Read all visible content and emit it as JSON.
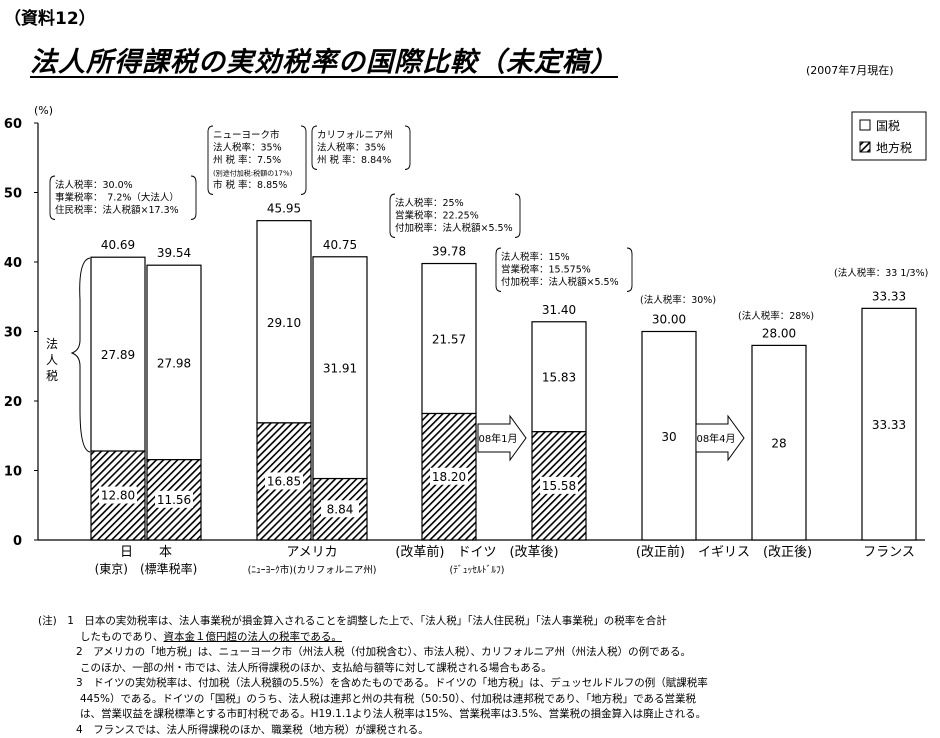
{
  "doc_label": "（資料12）",
  "title": "法人所得課税の実効税率の国際比較（未定稿）",
  "date_label": "(2007年7月現在)",
  "chart_data": {
    "type": "bar",
    "stacked": true,
    "ylabel": "(%)",
    "ylim": [
      0,
      60
    ],
    "yticks": [
      "0",
      "10",
      "20",
      "30",
      "40",
      "50",
      "60"
    ],
    "grid": false,
    "legend_position": "top-right",
    "series": [
      {
        "name": "国税",
        "color": "#ffffff"
      },
      {
        "name": "地方税",
        "color": "#505050"
      }
    ],
    "bars": [
      {
        "total": 40.69,
        "national": 27.89,
        "local": 12.8,
        "total_label": "40.69",
        "national_label": "27.89",
        "local_label": "12.80"
      },
      {
        "total": 39.54,
        "national": 27.98,
        "local": 11.56,
        "total_label": "39.54",
        "national_label": "27.98",
        "local_label": "11.56"
      },
      {
        "total": 45.95,
        "national": 29.1,
        "local": 16.85,
        "total_label": "45.95",
        "national_label": "29.10",
        "local_label": "16.85"
      },
      {
        "total": 40.75,
        "national": 31.91,
        "local": 8.84,
        "total_label": "40.75",
        "national_label": "31.91",
        "local_label": "8.84"
      },
      {
        "total": 39.78,
        "national": 21.57,
        "local": 18.2,
        "total_label": "39.78",
        "national_label": "21.57",
        "local_label": "18.20"
      },
      {
        "total": 31.4,
        "national": 15.83,
        "local": 15.58,
        "total_label": "31.40",
        "national_label": "15.83",
        "local_label": "15.58"
      },
      {
        "total": 30.0,
        "national": 30,
        "local": 0,
        "total_label": "30.00",
        "national_label": "30",
        "local_label": ""
      },
      {
        "total": 28.0,
        "national": 28,
        "local": 0,
        "total_label": "28.00",
        "national_label": "28",
        "local_label": ""
      },
      {
        "total": 33.33,
        "national": 33.33,
        "local": 0,
        "total_label": "33.33",
        "national_label": "33.33",
        "local_label": ""
      }
    ],
    "group_labels": [
      {
        "main": "日　　本",
        "sub": "(東京)　(標準税率)"
      },
      {
        "main": "アメリカ",
        "sub": "(ﾆｭｰﾖｰｸ市)(カリフォルニア州)"
      },
      {
        "main": "(改革前)　ドイツ　(改革後)",
        "sub": "(ﾃﾞｭｯｾﾙﾄﾞﾙﾌ)"
      },
      {
        "main": "(改正前)　イギリス　(改正後)",
        "sub": ""
      },
      {
        "main": "フランス",
        "sub": ""
      }
    ],
    "brace_label": "法人税",
    "arrows": [
      "08年1月",
      "08年4月"
    ],
    "annotations": [
      {
        "lines": [
          "法人税率：30.0%",
          "事業税率：　7.2%（大法人）",
          "住民税率：法人税額×17.3%"
        ]
      },
      {
        "lines": [
          "ニューヨーク市",
          "法人税率：35%",
          "州 税 率：7.5%",
          "(別途付加税:税額の17%)",
          "市 税 率：8.85%"
        ]
      },
      {
        "lines": [
          "カリフォルニア州",
          "法人税率：35%",
          "州 税 率：8.84%"
        ]
      },
      {
        "lines": [
          "法人税率：25%",
          "営業税率：22.25%",
          "付加税率：法人税額×5.5%"
        ]
      },
      {
        "lines": [
          "法人税率：15%",
          "営業税率：15.575%",
          "付加税率：法人税額×5.5%"
        ]
      },
      {
        "lines": [
          "(法人税率：30%)"
        ]
      },
      {
        "lines": [
          "(法人税率：28%)"
        ]
      },
      {
        "lines": [
          "(法人税率：33 1/3%)"
        ]
      }
    ]
  },
  "notes": [
    {
      "prefix": "(注)　1",
      "text": "日本の実効税率は、法人事業税が損金算入されることを調整した上で、「法人税」「法人住民税」「法人事業税」の税率を合計"
    },
    {
      "prefix": "",
      "text": "したものであり、",
      "underlined": "資本金１億円超の法人の税率である。"
    },
    {
      "prefix": "2",
      "text": "アメリカの「地方税」は、ニューヨーク市（州法人税（付加税含む）、市法人税）、カリフォルニア州（州法人税）の例である。"
    },
    {
      "prefix": "",
      "text": "このほか、一部の州・市では、法人所得課税のほか、支払給与額等に対して課税される場合もある。"
    },
    {
      "prefix": "3",
      "text": "ドイツの実効税率は、付加税（法人税額の5.5%）を含めたものである。ドイツの「地方税」は、デュッセルドルフの例（賦課税率"
    },
    {
      "prefix": "",
      "text": "445%）である。ドイツの「国税」のうち、法人税は連邦と州の共有税（50:50）、付加税は連邦税であり、「地方税」である営業税"
    },
    {
      "prefix": "",
      "text": "は、営業収益を課税標準とする市町村税である。H19.1.1より法人税率は15%、営業税率は3.5%、営業税の損金算入は廃止される。"
    },
    {
      "prefix": "4",
      "text": "フランスでは、法人所得課税のほか、職業税（地方税）が課税される。"
    }
  ]
}
